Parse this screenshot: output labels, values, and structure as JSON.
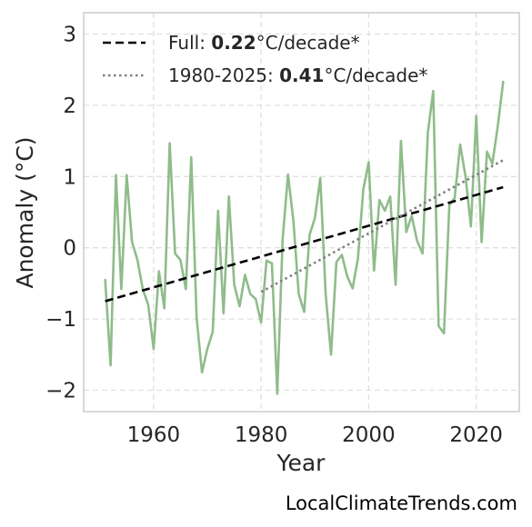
{
  "chart_data": {
    "type": "line",
    "xlabel": "Year",
    "ylabel": "Anomaly (°C)",
    "xlim": [
      1947,
      2028
    ],
    "ylim": [
      -2.3,
      3.3
    ],
    "xticks": [
      1960,
      1980,
      2000,
      2020
    ],
    "yticks": [
      -2,
      -1,
      0,
      1,
      2,
      3
    ],
    "grid": true,
    "legend_position": "top-left",
    "series_color": "#8fbc8a",
    "x": [
      1951,
      1952,
      1953,
      1954,
      1955,
      1956,
      1957,
      1958,
      1959,
      1960,
      1961,
      1962,
      1963,
      1964,
      1965,
      1966,
      1967,
      1968,
      1969,
      1970,
      1971,
      1972,
      1973,
      1974,
      1975,
      1976,
      1977,
      1978,
      1979,
      1980,
      1981,
      1982,
      1983,
      1984,
      1985,
      1986,
      1987,
      1988,
      1989,
      1990,
      1991,
      1992,
      1993,
      1994,
      1995,
      1996,
      1997,
      1998,
      1999,
      2000,
      2001,
      2002,
      2003,
      2004,
      2005,
      2006,
      2007,
      2008,
      2009,
      2010,
      2011,
      2012,
      2013,
      2014,
      2015,
      2016,
      2017,
      2018,
      2019,
      2020,
      2021,
      2022,
      2023,
      2024,
      2025
    ],
    "values": [
      -0.45,
      -1.65,
      1.02,
      -0.58,
      1.02,
      0.08,
      -0.17,
      -0.58,
      -0.8,
      -1.42,
      -0.33,
      -0.85,
      1.47,
      -0.08,
      -0.17,
      -0.58,
      1.27,
      -0.98,
      -1.75,
      -1.42,
      -1.18,
      0.52,
      -0.92,
      0.72,
      -0.52,
      -0.82,
      -0.38,
      -0.65,
      -0.72,
      -1.05,
      -0.18,
      -0.22,
      -2.05,
      0.12,
      1.03,
      0.38,
      -0.65,
      -0.9,
      0.18,
      0.42,
      0.98,
      -0.65,
      -1.5,
      -0.2,
      -0.1,
      -0.4,
      -0.57,
      -0.15,
      0.82,
      1.2,
      -0.32,
      0.67,
      0.52,
      0.72,
      -0.52,
      1.5,
      0.22,
      0.45,
      0.1,
      -0.08,
      1.62,
      2.2,
      -1.1,
      -1.2,
      0.6,
      0.7,
      1.45,
      1.0,
      0.3,
      1.85,
      0.08,
      1.35,
      1.18,
      1.7,
      2.33
    ],
    "trends": [
      {
        "label_prefix": "Full: ",
        "label_value": "0.22",
        "label_suffix": "°C/decade*",
        "color": "#000000",
        "style": "dashed",
        "x_start": 1951,
        "y_start": -0.75,
        "x_end": 2025,
        "y_end": 0.85
      },
      {
        "label_prefix": "1980-2025: ",
        "label_value": "0.41",
        "label_suffix": "°C/decade*",
        "color": "#808080",
        "style": "dotted",
        "x_start": 1980,
        "y_start": -0.62,
        "x_end": 2025,
        "y_end": 1.23
      }
    ]
  },
  "watermark": "LocalClimateTrends.com"
}
